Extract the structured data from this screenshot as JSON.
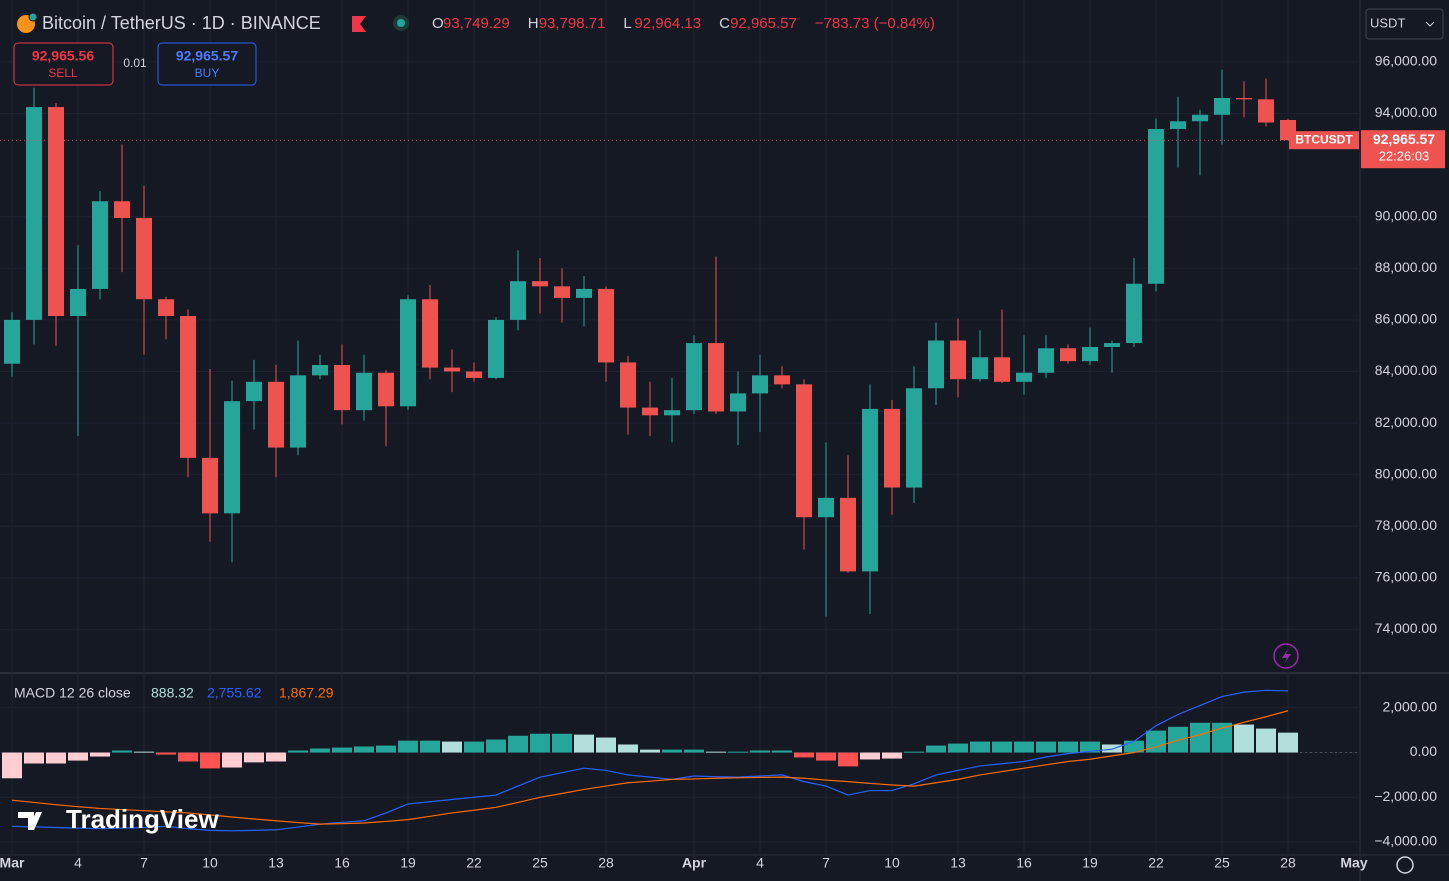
{
  "header": {
    "title": "Bitcoin / TetherUS · 1D · BINANCE",
    "ohlc": [
      {
        "key": "O",
        "value": "93,749.29"
      },
      {
        "key": "H",
        "value": "93,798.71"
      },
      {
        "key": "L",
        "value": "92,964.13"
      },
      {
        "key": "C",
        "value": "92,965.57"
      }
    ],
    "change": "−783.73 (−0.84%)",
    "currency": "USDT"
  },
  "trade": {
    "sell_price": "92,965.56",
    "sell": "SELL",
    "spread": "0.01",
    "buy_price": "92,965.57",
    "buy": "BUY"
  },
  "watermark": "TradingView",
  "chart_data": [
    {
      "type": "candlestick",
      "categories": [
        "Mar",
        null,
        null,
        "4",
        null,
        null,
        "7",
        null,
        null,
        "10",
        null,
        null,
        "13",
        null,
        null,
        "16",
        null,
        null,
        "19",
        null,
        null,
        "22",
        null,
        null,
        "25",
        null,
        null,
        "28",
        null,
        null,
        null,
        "Apr",
        null,
        null,
        "4",
        null,
        null,
        "7",
        null,
        null,
        "10",
        null,
        null,
        "13",
        null,
        null,
        "16",
        null,
        null,
        "19",
        null,
        null,
        "22",
        null,
        null,
        "25",
        null,
        null,
        "28"
      ],
      "end_label": "May",
      "open": [
        84300,
        86000,
        94250,
        86150,
        87200,
        90600,
        89950,
        86800,
        86150,
        80650,
        78500,
        82850,
        83600,
        81050,
        83850,
        84250,
        82500,
        83950,
        82650,
        86800,
        84150,
        84000,
        83750,
        86000,
        87500,
        87300,
        86850,
        87200,
        84350,
        82600,
        82300,
        82500,
        85100,
        82450,
        83150,
        83850,
        83500,
        78350,
        79100,
        76250,
        82550,
        79500,
        83350,
        85200,
        83700,
        84550,
        83600,
        83950,
        84900,
        84400,
        84950,
        85100,
        87400,
        93400,
        93700,
        93950,
        94600,
        94550,
        93749.29
      ],
      "high": [
        86300,
        95000,
        94400,
        88900,
        91000,
        92800,
        91200,
        86900,
        86400,
        84100,
        83650,
        84450,
        84250,
        85200,
        84650,
        85050,
        84650,
        84050,
        86950,
        87350,
        84850,
        84350,
        86100,
        88700,
        88400,
        88000,
        87700,
        87300,
        84600,
        83600,
        83750,
        85400,
        88450,
        84000,
        84650,
        84200,
        83700,
        81250,
        80750,
        83500,
        82900,
        84200,
        85900,
        86050,
        85600,
        86400,
        85400,
        85400,
        85050,
        85700,
        85200,
        88400,
        93800,
        94650,
        94150,
        95700,
        95250,
        95350,
        93798.71
      ],
      "low": [
        83800,
        85050,
        85000,
        81500,
        86800,
        87850,
        84650,
        85250,
        79900,
        77400,
        76600,
        81750,
        79900,
        80750,
        83700,
        81950,
        82100,
        81100,
        82500,
        83700,
        83200,
        83600,
        83700,
        85600,
        86250,
        85900,
        85750,
        83600,
        81550,
        81500,
        81250,
        82350,
        82350,
        81150,
        81650,
        83350,
        77100,
        74500,
        76200,
        74600,
        78450,
        78900,
        82700,
        83000,
        83600,
        83550,
        83100,
        83750,
        84300,
        84250,
        83950,
        84950,
        87100,
        91900,
        91600,
        92800,
        93850,
        93500,
        92964.13
      ],
      "close": [
        86000,
        94250,
        86150,
        87200,
        90600,
        89950,
        86800,
        86150,
        80650,
        78500,
        82850,
        83600,
        81050,
        83850,
        84250,
        82500,
        83950,
        82650,
        86800,
        84150,
        84000,
        83750,
        86000,
        87500,
        87300,
        86850,
        87200,
        84350,
        82600,
        82300,
        82500,
        85100,
        82450,
        83150,
        83850,
        83500,
        78350,
        79100,
        76250,
        82550,
        79500,
        83350,
        85200,
        83700,
        84550,
        83600,
        83950,
        84900,
        84400,
        84950,
        85100,
        87400,
        93400,
        93700,
        93950,
        94600,
        94550,
        93650,
        92965.57
      ],
      "up_color": "#26a69a",
      "down_color": "#ef5350",
      "ylim": [
        72350,
        98400
      ],
      "yticks": [
        {
          "value": 74000,
          "label": "74,000.00"
        },
        {
          "value": 76000,
          "label": "76,000.00"
        },
        {
          "value": 78000,
          "label": "78,000.00"
        },
        {
          "value": 80000,
          "label": "80,000.00"
        },
        {
          "value": 82000,
          "label": "82,000.00"
        },
        {
          "value": 84000,
          "label": "84,000.00"
        },
        {
          "value": 86000,
          "label": "86,000.00"
        },
        {
          "value": 88000,
          "label": "88,000.00"
        },
        {
          "value": 90000,
          "label": "90,000.00"
        },
        {
          "value": 94000,
          "label": "94,000.00"
        },
        {
          "value": 96000,
          "label": "96,000.00"
        }
      ],
      "grid": true,
      "last_price": {
        "symbol": "BTCUSDT",
        "label": "92,965.57",
        "countdown": "22:26:03"
      }
    },
    {
      "type": "macd",
      "title": "MACD 12 26 close",
      "ylim": [
        -4580,
        3510
      ],
      "yticks": [
        {
          "value": -4000,
          "label": "−4,000.00"
        },
        {
          "value": -2000,
          "label": "−2,000.00"
        },
        {
          "value": 0,
          "label": "0.00"
        },
        {
          "value": 2000,
          "label": "2,000.00"
        }
      ],
      "histogram": {
        "values": [
          -1150,
          -490,
          -490,
          -360,
          -180,
          90,
          40,
          -90,
          -400,
          -710,
          -670,
          -440,
          -400,
          90,
          180,
          220,
          270,
          310,
          530,
          530,
          490,
          490,
          580,
          750,
          840,
          840,
          800,
          670,
          360,
          130,
          130,
          130,
          40,
          40,
          90,
          90,
          -220,
          -360,
          -620,
          -310,
          -270,
          40,
          310,
          400,
          490,
          490,
          490,
          490,
          490,
          490,
          360,
          530,
          980,
          1150,
          1330,
          1330,
          1250,
          1070,
          888.32
        ],
        "colors": {
          "up_rising": "#26a69a",
          "up_falling": "#b2dfdb",
          "down_falling": "#ff5252",
          "down_rising": "#ffcdd2"
        }
      },
      "series": [
        {
          "color": "#2962ff",
          "values": [
            -3300,
            -3320,
            -3350,
            -3380,
            -3400,
            -3380,
            -3350,
            -3300,
            -3400,
            -3480,
            -3500,
            -3480,
            -3450,
            -3330,
            -3200,
            -3120,
            -3050,
            -2700,
            -2300,
            -2200,
            -2100,
            -2000,
            -1900,
            -1500,
            -1100,
            -900,
            -700,
            -800,
            -1000,
            -1100,
            -1200,
            -1050,
            -1080,
            -1100,
            -1050,
            -1000,
            -1300,
            -1500,
            -1900,
            -1700,
            -1700,
            -1400,
            -1000,
            -800,
            -600,
            -500,
            -400,
            -200,
            -50,
            50,
            150,
            500,
            1200,
            1700,
            2100,
            2500,
            2700,
            2780,
            2755.62
          ],
          "last_label": "2,755.62"
        },
        {
          "color": "#ff6d00",
          "values": [
            -2130,
            -2230,
            -2330,
            -2420,
            -2500,
            -2550,
            -2600,
            -2650,
            -2700,
            -2790,
            -2880,
            -2970,
            -3050,
            -3130,
            -3200,
            -3180,
            -3150,
            -3080,
            -3000,
            -2850,
            -2700,
            -2580,
            -2450,
            -2230,
            -2000,
            -1830,
            -1650,
            -1500,
            -1350,
            -1280,
            -1200,
            -1180,
            -1150,
            -1130,
            -1110,
            -1100,
            -1150,
            -1230,
            -1300,
            -1380,
            -1450,
            -1500,
            -1350,
            -1200,
            -1000,
            -850,
            -700,
            -550,
            -400,
            -300,
            -150,
            0,
            250,
            550,
            800,
            1100,
            1350,
            1600,
            1867.29
          ],
          "last_label": "1,867.29"
        }
      ]
    }
  ]
}
